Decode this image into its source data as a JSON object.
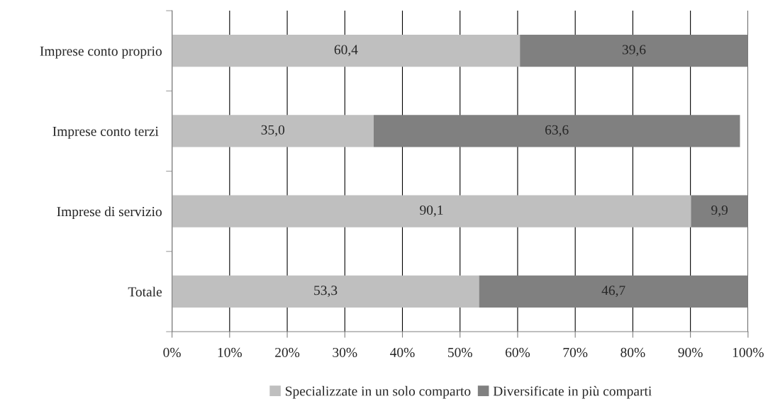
{
  "chart_data": {
    "type": "bar",
    "orientation": "horizontal",
    "stacked": true,
    "categories": [
      "Imprese conto proprio",
      "Imprese conto terzi ",
      "Imprese di servizio",
      "Totale"
    ],
    "series": [
      {
        "name": "Specializzate in un solo comparto",
        "color": "#bfbfbf",
        "values": [
          60.4,
          35.0,
          90.1,
          53.3
        ],
        "value_labels": [
          "60,4",
          "35,0",
          "90,1",
          "53,3"
        ]
      },
      {
        "name": "Diversificate in più comparti",
        "color": "#808080",
        "values": [
          39.6,
          63.6,
          9.9,
          46.7
        ],
        "value_labels": [
          "39,6",
          "63,6",
          "9,9",
          "46,7"
        ]
      }
    ],
    "xlim": [
      0,
      100
    ],
    "xticks": [
      {
        "value": 0,
        "label": "0%"
      },
      {
        "value": 10,
        "label": "10%"
      },
      {
        "value": 20,
        "label": "20%"
      },
      {
        "value": 30,
        "label": "30%"
      },
      {
        "value": 40,
        "label": "40%"
      },
      {
        "value": 50,
        "label": "50%"
      },
      {
        "value": 60,
        "label": "60%"
      },
      {
        "value": 70,
        "label": "70%"
      },
      {
        "value": 80,
        "label": "80%"
      },
      {
        "value": 90,
        "label": "90%"
      },
      {
        "value": 100,
        "label": "100%"
      }
    ],
    "grid": "x",
    "legend": "bottom"
  }
}
